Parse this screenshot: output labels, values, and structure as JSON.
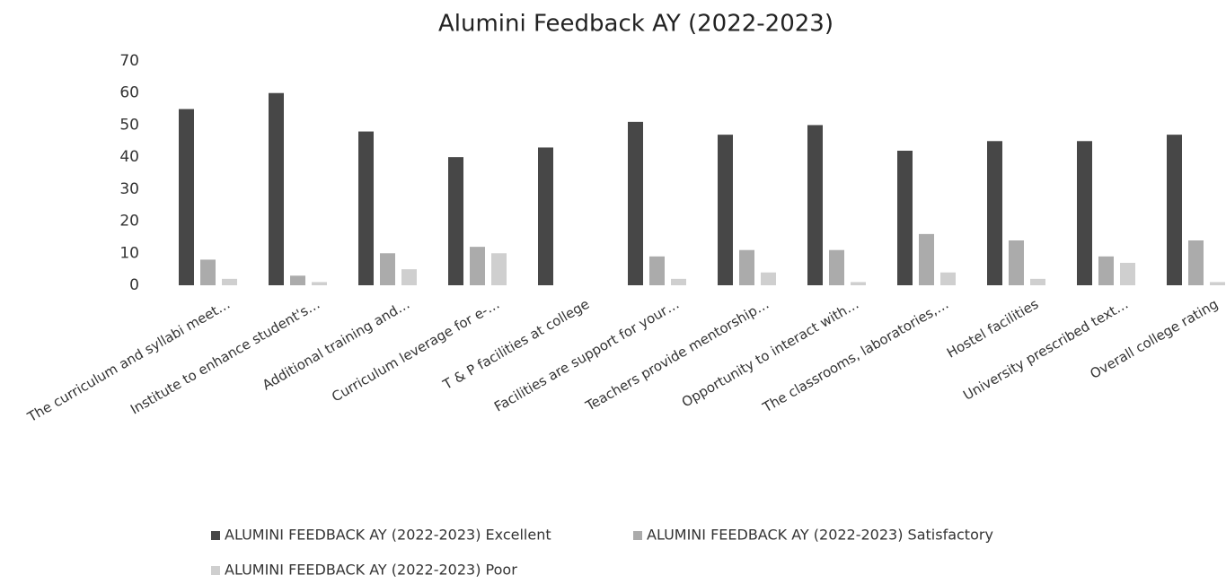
{
  "chart_data": {
    "type": "bar",
    "title": "Alumini Feedback AY (2022-2023)",
    "categories": [
      "The curriculum and syllabi meet…",
      "Institute to enhance student's…",
      "Additional training and…",
      "Curriculum leverage for e-…",
      "T & P facilities at college",
      "Facilities are support for your…",
      "Teachers provide mentorship…",
      "Opportunity to interact with…",
      "The classrooms, laboratories,…",
      "Hostel facilities",
      "University prescribed text…",
      "Overall college rating"
    ],
    "series": [
      {
        "name": "ALUMINI FEEDBACK AY (2022-2023) Excellent",
        "color": "#474747",
        "values": [
          55,
          60,
          48,
          40,
          43,
          51,
          47,
          50,
          42,
          45,
          45,
          47
        ]
      },
      {
        "name": "ALUMINI FEEDBACK AY (2022-2023) Satisfactory",
        "color": "#ababab",
        "values": [
          8,
          3,
          10,
          12,
          0,
          9,
          11,
          11,
          16,
          14,
          9,
          14
        ]
      },
      {
        "name": "ALUMINI FEEDBACK AY (2022-2023) Poor",
        "color": "#cfcfcf",
        "values": [
          2,
          1,
          5,
          10,
          0,
          2,
          4,
          1,
          4,
          2,
          7,
          1
        ]
      }
    ],
    "ylim": [
      0,
      70
    ],
    "yticks": [
      0,
      10,
      20,
      30,
      40,
      50,
      60,
      70
    ],
    "grid": false
  }
}
